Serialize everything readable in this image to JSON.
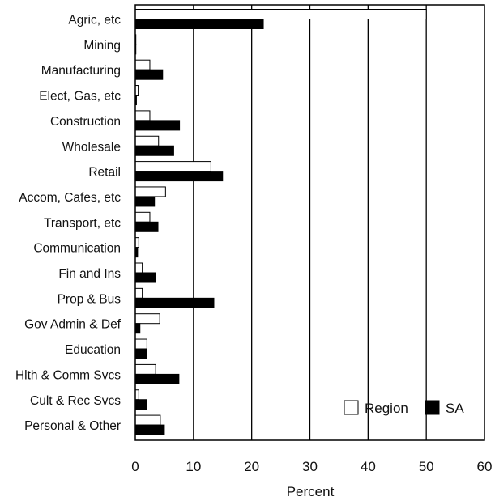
{
  "chart_data": {
    "type": "bar",
    "orientation": "horizontal",
    "categories": [
      "Agric, etc",
      "Mining",
      "Manufacturing",
      "Elect, Gas, etc",
      "Construction",
      "Wholesale",
      "Retail",
      "Accom, Cafes, etc",
      "Transport, etc",
      "Communication",
      "Fin and Ins",
      "Prop & Bus",
      "Gov Admin & Def",
      "Education",
      "Hlth & Comm Svcs",
      "Cult & Rec Svcs",
      "Personal & Other"
    ],
    "series": [
      {
        "name": "Region",
        "color": "#ffffff",
        "values": [
          50.0,
          0.1,
          2.5,
          0.5,
          2.5,
          4.0,
          13.0,
          5.2,
          2.5,
          0.6,
          1.2,
          1.2,
          4.2,
          2.0,
          3.5,
          0.6,
          4.3
        ]
      },
      {
        "name": "SA",
        "color": "#000000",
        "values": [
          22.0,
          0.1,
          4.7,
          0.2,
          7.6,
          6.6,
          15.0,
          3.3,
          3.9,
          0.4,
          3.5,
          13.5,
          0.8,
          2.0,
          7.5,
          2.0,
          5.0
        ]
      }
    ],
    "xlabel": "Percent",
    "ylabel": "",
    "xlim": [
      0,
      60
    ],
    "xticks": [
      0,
      10,
      20,
      30,
      40,
      50,
      60
    ],
    "grid": true,
    "legend_position": "bottom-right"
  }
}
